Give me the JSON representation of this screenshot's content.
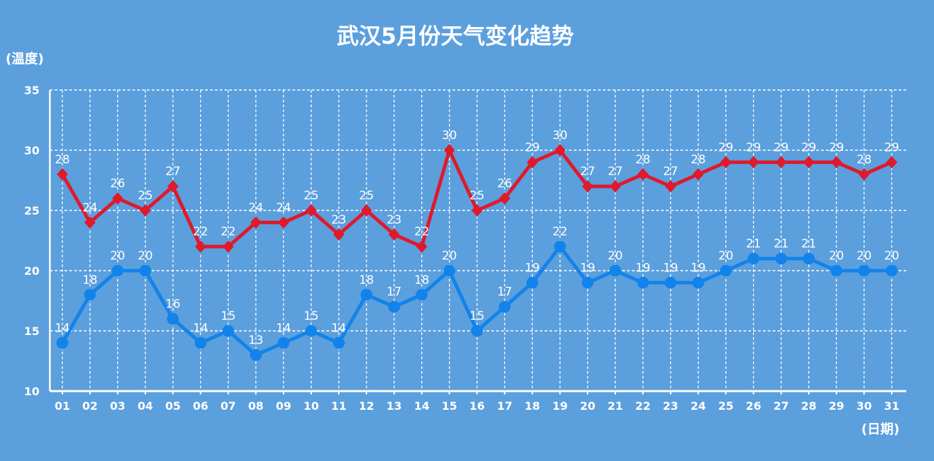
{
  "chart_data": {
    "type": "line",
    "title": "武汉5月份天气变化趋势",
    "ylabel": "(温度)",
    "xlabel": "(日期)",
    "ylim": [
      10,
      35
    ],
    "yticks": [
      "10",
      "15",
      "20",
      "25",
      "30",
      "35"
    ],
    "grid": true,
    "categories": [
      "01",
      "02",
      "03",
      "04",
      "05",
      "06",
      "07",
      "08",
      "09",
      "10",
      "11",
      "12",
      "13",
      "14",
      "15",
      "16",
      "17",
      "18",
      "19",
      "20",
      "21",
      "22",
      "23",
      "24",
      "25",
      "26",
      "27",
      "28",
      "29",
      "30",
      "31"
    ],
    "series": [
      {
        "color": "#e0192b",
        "marker": "diamond",
        "values": [
          28,
          24,
          26,
          25,
          27,
          22,
          22,
          24,
          24,
          25,
          23,
          25,
          23,
          22,
          30,
          25,
          26,
          29,
          30,
          27,
          27,
          28,
          27,
          28,
          29,
          29,
          29,
          29,
          29,
          28,
          29
        ]
      },
      {
        "color": "#1283ea",
        "marker": "circle",
        "values": [
          14,
          18,
          20,
          20,
          16,
          14,
          15,
          13,
          14,
          15,
          14,
          18,
          17,
          18,
          20,
          15,
          17,
          19,
          22,
          19,
          20,
          19,
          19,
          19,
          20,
          21,
          21,
          21,
          20,
          20,
          20
        ]
      }
    ]
  }
}
